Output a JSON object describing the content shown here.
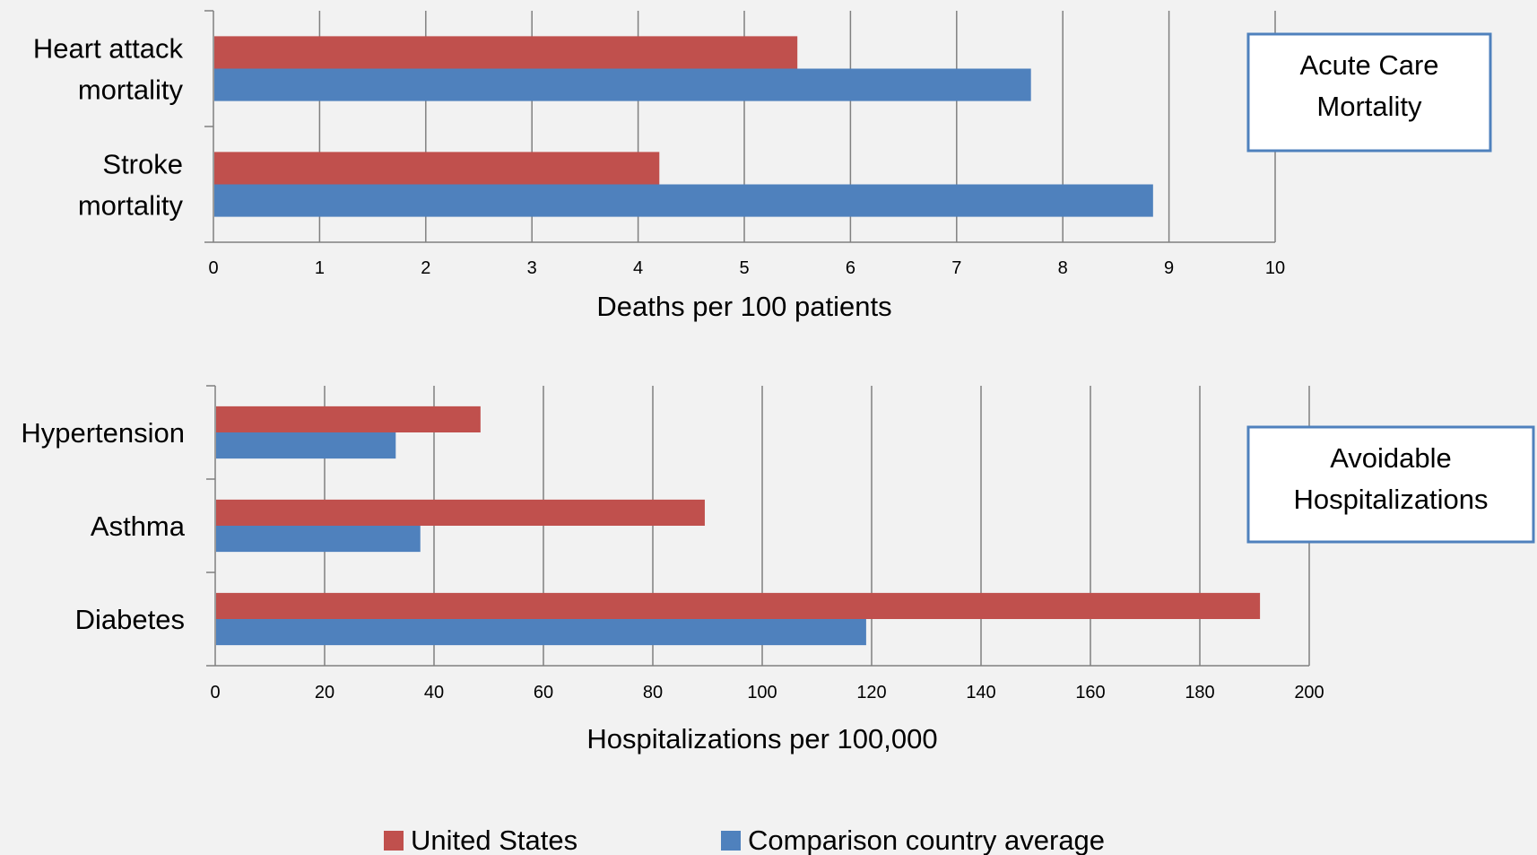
{
  "chart_data": [
    {
      "type": "bar",
      "orientation": "horizontal",
      "annotation_box": [
        "Acute Care",
        "Mortality"
      ],
      "xlabel": "Deaths per 100 patients",
      "xlim": [
        0,
        10
      ],
      "ticks": [
        "0",
        "1",
        "2",
        "3",
        "4",
        "5",
        "6",
        "7",
        "8",
        "9",
        "10"
      ],
      "categories": [
        [
          "Heart attack",
          "mortality"
        ],
        [
          "Stroke",
          "mortality"
        ]
      ],
      "series": [
        {
          "name": "United States",
          "values": [
            5.5,
            4.2
          ]
        },
        {
          "name": "Comparison country average",
          "values": [
            7.7,
            8.85
          ]
        }
      ],
      "grid": true
    },
    {
      "type": "bar",
      "orientation": "horizontal",
      "annotation_box": [
        "Avoidable",
        "Hospitalizations"
      ],
      "xlabel": "Hospitalizations per 100,000",
      "xlim": [
        0,
        200
      ],
      "ticks": [
        "0",
        "20",
        "40",
        "60",
        "80",
        "100",
        "120",
        "140",
        "160",
        "180",
        "200"
      ],
      "categories": [
        [
          "Hypertension"
        ],
        [
          "Asthma"
        ],
        [
          "Diabetes"
        ]
      ],
      "series": [
        {
          "name": "United States",
          "values": [
            48.5,
            89.5,
            191
          ]
        },
        {
          "name": "Comparison country average",
          "values": [
            33,
            37.5,
            119
          ]
        }
      ],
      "grid": true
    }
  ],
  "legend": {
    "placement": "bottom",
    "items": [
      {
        "label": "United States",
        "color": "#c0504d"
      },
      {
        "label": "Comparison country average",
        "color": "#4f81bd"
      }
    ]
  },
  "colors": {
    "us": "#c0504d",
    "comparison": "#4f81bd",
    "box_border": "#4f81bd",
    "grid": "#808080"
  }
}
